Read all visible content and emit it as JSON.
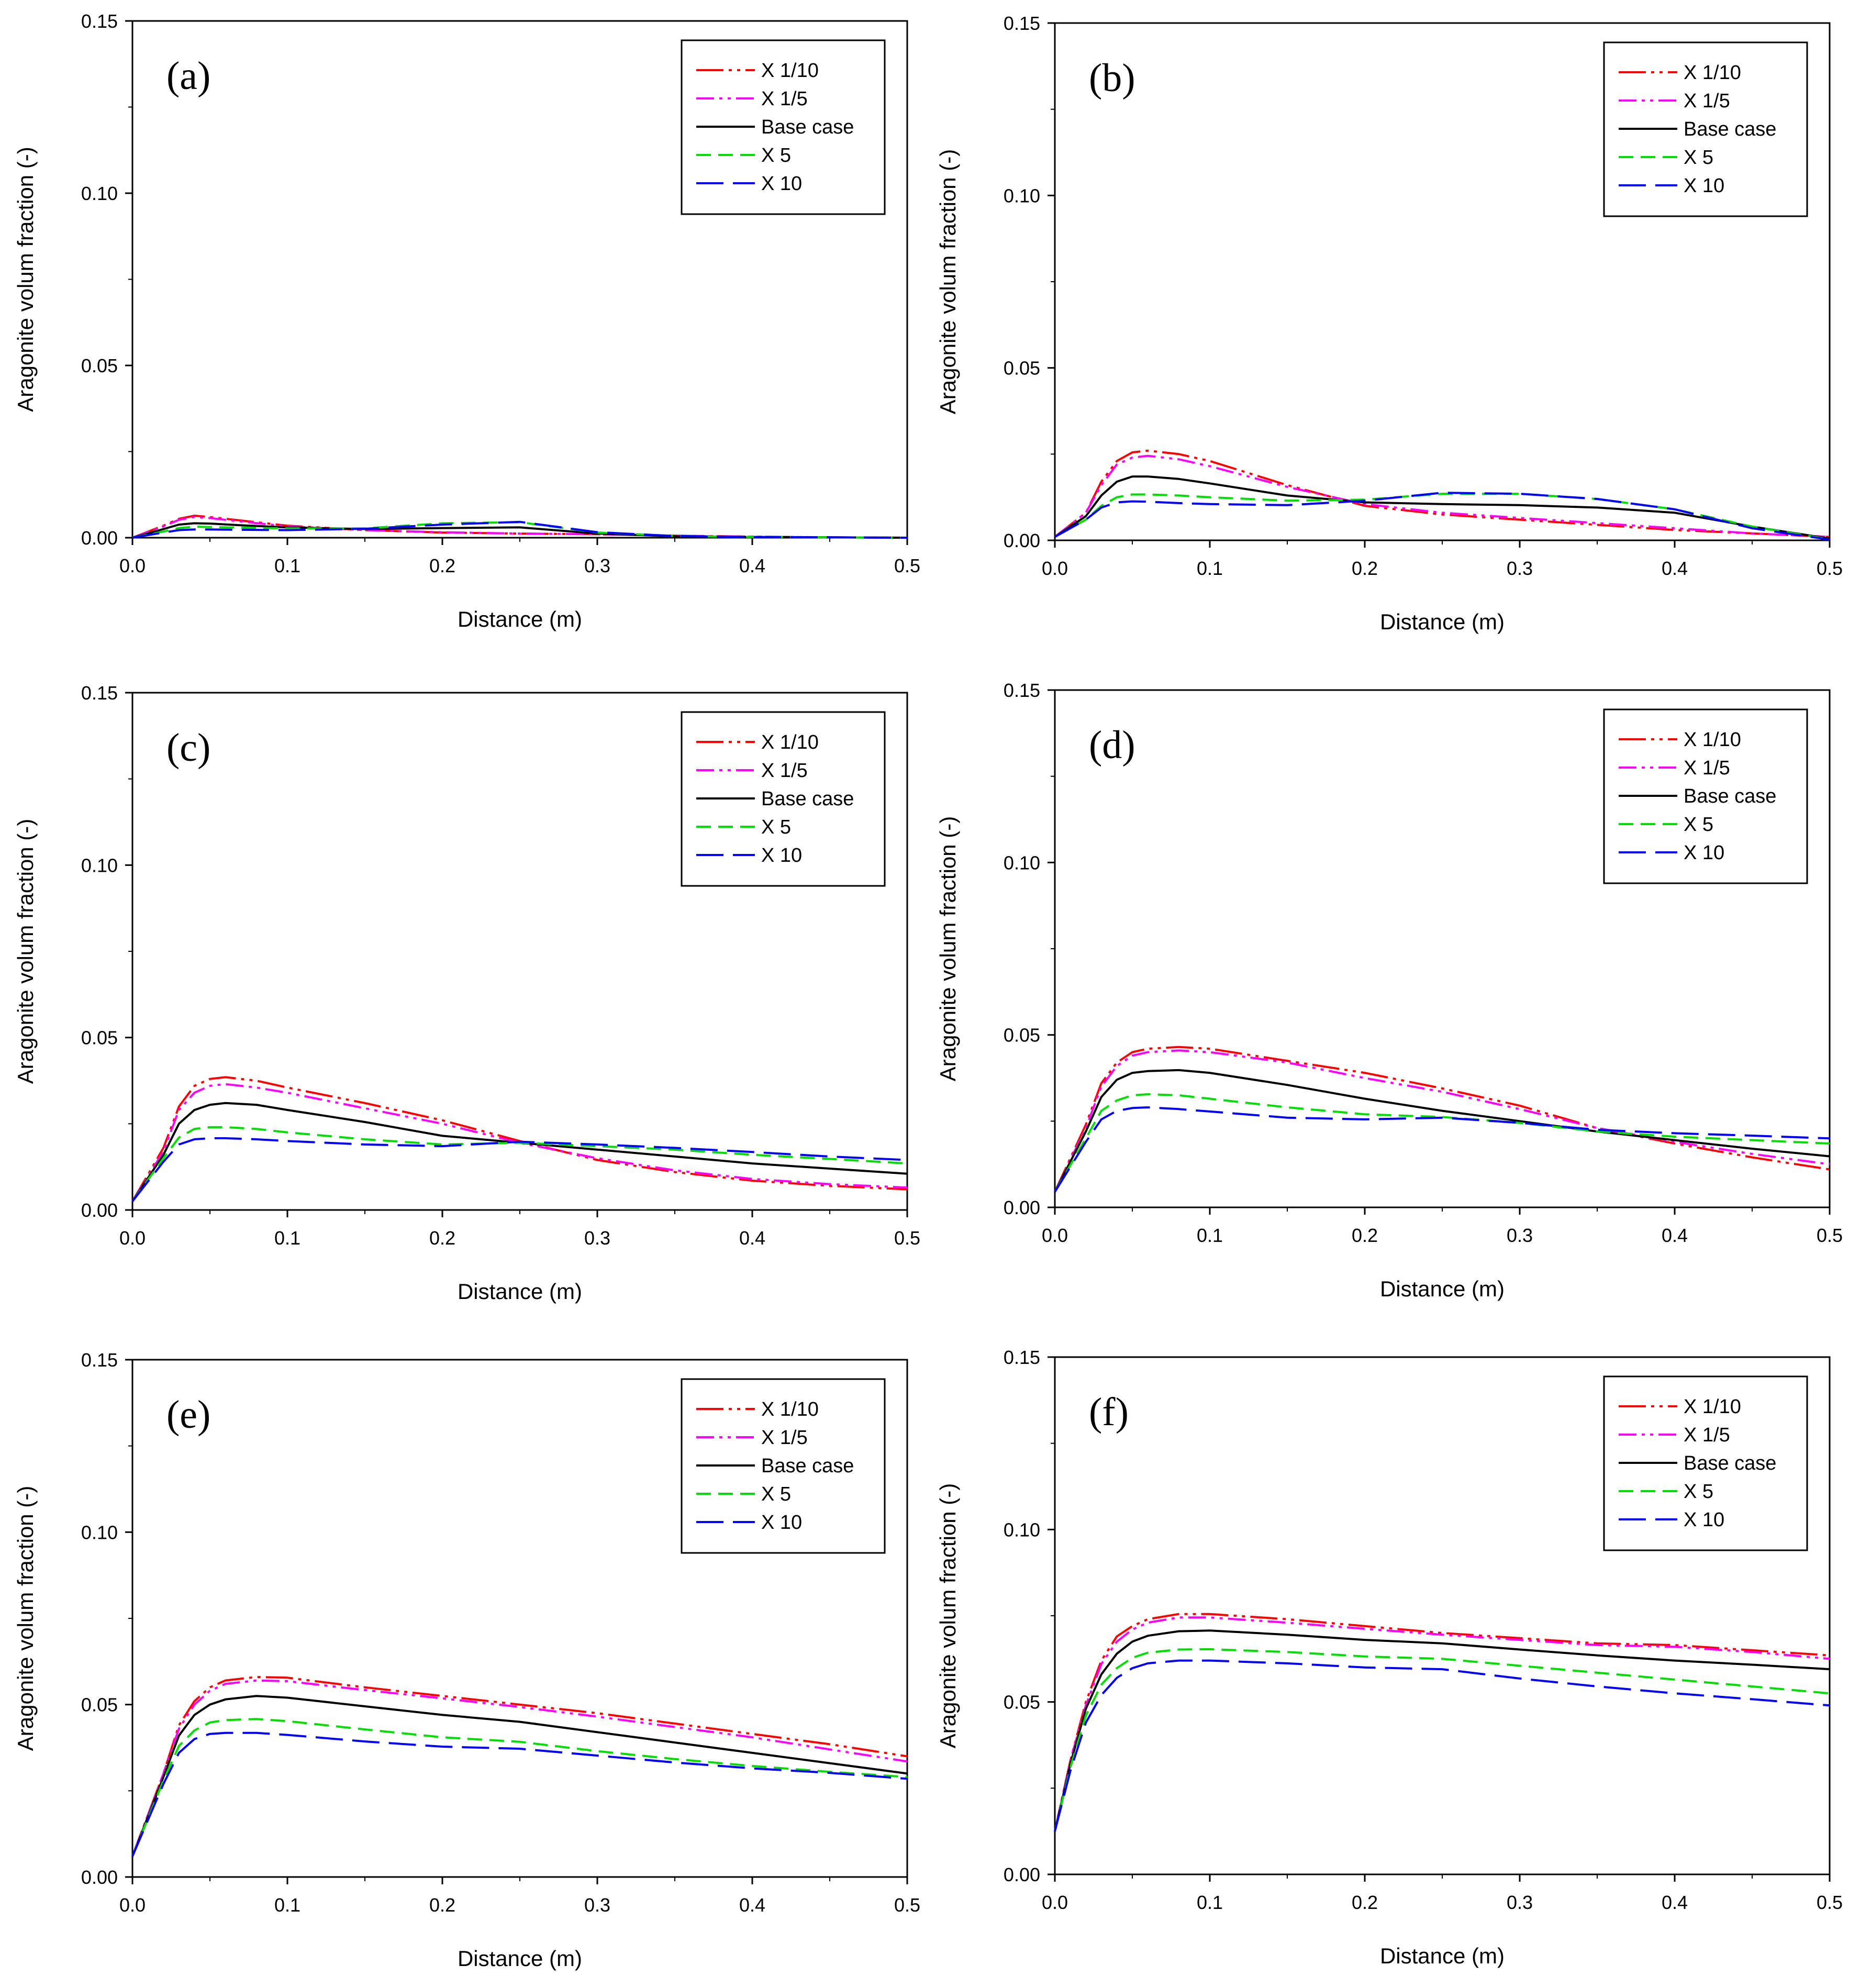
{
  "figure": {
    "xlabel": "Distance (m)",
    "ylabel": "Aragonite volum fraction (-)",
    "xticks": [
      "0.0",
      "0.1",
      "0.2",
      "0.3",
      "0.4",
      "0.5"
    ],
    "yticks": [
      "0.00",
      "0.05",
      "0.10",
      "0.15"
    ]
  },
  "series_style": [
    {
      "name": "X 1/10",
      "color": "#ff0000",
      "dash": "long-dash-dot-dot"
    },
    {
      "name": "X 1/5",
      "color": "#ff00ff",
      "dash": "dash-dot-dot"
    },
    {
      "name": "Base case",
      "color": "#000000",
      "dash": "solid"
    },
    {
      "name": "X 5",
      "color": "#00dd00",
      "dash": "dash"
    },
    {
      "name": "X 10",
      "color": "#0000ff",
      "dash": "long-dash"
    }
  ],
  "chart_data": [
    {
      "type": "line",
      "panel_label": "(a)",
      "xlabel": "Distance (m)",
      "ylabel": "Aragonite volum fraction (-)",
      "xlim": [
        0,
        0.5
      ],
      "ylim": [
        0,
        0.15
      ],
      "legend": "top-right",
      "x": [
        0,
        0.02,
        0.03,
        0.04,
        0.05,
        0.07,
        0.1,
        0.15,
        0.2,
        0.25,
        0.3,
        0.35,
        0.4,
        0.45,
        0.5
      ],
      "series": [
        {
          "name": "X 1/10",
          "values": [
            0,
            0.0035,
            0.0055,
            0.0064,
            0.006,
            0.005,
            0.0035,
            0.0022,
            0.0015,
            0.0012,
            0.001,
            0.0006,
            0.0003,
            0.0001,
            0
          ]
        },
        {
          "name": "X 1/5",
          "values": [
            0,
            0.0033,
            0.0052,
            0.006,
            0.0057,
            0.0047,
            0.0033,
            0.0022,
            0.0016,
            0.0012,
            0.001,
            0.0006,
            0.0003,
            0.0001,
            0
          ]
        },
        {
          "name": "Base case",
          "values": [
            0,
            0.0025,
            0.0038,
            0.0042,
            0.0041,
            0.0036,
            0.003,
            0.0025,
            0.0028,
            0.003,
            0.0012,
            0.0004,
            0.0002,
            0.0001,
            0
          ]
        },
        {
          "name": "X 5",
          "values": [
            0,
            0.0018,
            0.0028,
            0.0032,
            0.0031,
            0.0029,
            0.0027,
            0.0027,
            0.0042,
            0.0045,
            0.0015,
            0.0005,
            0.0002,
            0.0001,
            0
          ]
        },
        {
          "name": "X 10",
          "values": [
            0,
            0.0015,
            0.0022,
            0.0024,
            0.0024,
            0.0023,
            0.0022,
            0.0026,
            0.0038,
            0.0046,
            0.0016,
            0.0005,
            0.0002,
            0.0001,
            0
          ]
        }
      ]
    },
    {
      "type": "line",
      "panel_label": "(b)",
      "xlabel": "Distance (m)",
      "ylabel": "Aragonite volum fraction (-)",
      "xlim": [
        0,
        0.5
      ],
      "ylim": [
        0,
        0.15
      ],
      "legend": "top-right",
      "x": [
        0,
        0.02,
        0.03,
        0.04,
        0.05,
        0.06,
        0.08,
        0.1,
        0.15,
        0.2,
        0.25,
        0.3,
        0.35,
        0.4,
        0.45,
        0.5
      ],
      "series": [
        {
          "name": "X 1/10",
          "values": [
            0.001,
            0.008,
            0.017,
            0.023,
            0.0255,
            0.026,
            0.025,
            0.023,
            0.016,
            0.01,
            0.0075,
            0.006,
            0.0045,
            0.003,
            0.002,
            0.001
          ]
        },
        {
          "name": "X 1/5",
          "values": [
            0.001,
            0.008,
            0.016,
            0.022,
            0.024,
            0.0245,
            0.0235,
            0.0215,
            0.0155,
            0.0105,
            0.008,
            0.0065,
            0.005,
            0.0035,
            0.002,
            0.001
          ]
        },
        {
          "name": "Base case",
          "values": [
            0.001,
            0.007,
            0.013,
            0.017,
            0.0185,
            0.0185,
            0.0178,
            0.0165,
            0.013,
            0.011,
            0.0105,
            0.0102,
            0.0095,
            0.008,
            0.004,
            0.0005
          ]
        },
        {
          "name": "X 5",
          "values": [
            0.001,
            0.006,
            0.01,
            0.0125,
            0.0133,
            0.0133,
            0.013,
            0.0125,
            0.0115,
            0.0118,
            0.0135,
            0.0135,
            0.012,
            0.009,
            0.004,
            0.0003
          ]
        },
        {
          "name": "X 10",
          "values": [
            0.001,
            0.006,
            0.0095,
            0.011,
            0.0113,
            0.0112,
            0.0108,
            0.0105,
            0.0102,
            0.0115,
            0.0138,
            0.0135,
            0.012,
            0.009,
            0.0035,
            0.0002
          ]
        }
      ]
    },
    {
      "type": "line",
      "panel_label": "(c)",
      "xlabel": "Distance (m)",
      "ylabel": "Aragonite volum fraction (-)",
      "xlim": [
        0,
        0.5
      ],
      "ylim": [
        0,
        0.15
      ],
      "legend": "top-right",
      "x": [
        0,
        0.02,
        0.03,
        0.04,
        0.05,
        0.06,
        0.08,
        0.1,
        0.15,
        0.2,
        0.25,
        0.3,
        0.35,
        0.4,
        0.45,
        0.5
      ],
      "series": [
        {
          "name": "X 1/10",
          "values": [
            0.0025,
            0.018,
            0.03,
            0.036,
            0.038,
            0.0385,
            0.0375,
            0.0355,
            0.031,
            0.026,
            0.02,
            0.0145,
            0.011,
            0.0085,
            0.007,
            0.006
          ]
        },
        {
          "name": "X 1/5",
          "values": [
            0.0025,
            0.017,
            0.029,
            0.034,
            0.036,
            0.0365,
            0.0355,
            0.034,
            0.0295,
            0.025,
            0.0195,
            0.015,
            0.0115,
            0.009,
            0.0075,
            0.0065
          ]
        },
        {
          "name": "Base case",
          "values": [
            0.0025,
            0.016,
            0.025,
            0.029,
            0.0305,
            0.031,
            0.0305,
            0.029,
            0.0255,
            0.0215,
            0.0195,
            0.0175,
            0.0155,
            0.0135,
            0.012,
            0.0105
          ]
        },
        {
          "name": "X 5",
          "values": [
            0.0025,
            0.015,
            0.021,
            0.0235,
            0.024,
            0.024,
            0.0235,
            0.0225,
            0.0205,
            0.019,
            0.0195,
            0.0185,
            0.0175,
            0.016,
            0.0148,
            0.0135
          ]
        },
        {
          "name": "X 10",
          "values": [
            0.0025,
            0.014,
            0.019,
            0.0205,
            0.0208,
            0.0208,
            0.0205,
            0.02,
            0.019,
            0.0185,
            0.0198,
            0.019,
            0.018,
            0.0168,
            0.0155,
            0.0145
          ]
        }
      ]
    },
    {
      "type": "line",
      "panel_label": "(d)",
      "xlabel": "Distance (m)",
      "ylabel": "Aragonite volum fraction (-)",
      "xlim": [
        0,
        0.5
      ],
      "ylim": [
        0,
        0.15
      ],
      "legend": "top-right",
      "x": [
        0,
        0.02,
        0.03,
        0.04,
        0.05,
        0.06,
        0.08,
        0.1,
        0.15,
        0.2,
        0.25,
        0.3,
        0.35,
        0.4,
        0.45,
        0.5
      ],
      "series": [
        {
          "name": "X 1/10",
          "values": [
            0.0045,
            0.024,
            0.036,
            0.042,
            0.045,
            0.046,
            0.0465,
            0.046,
            0.0425,
            0.039,
            0.0345,
            0.0295,
            0.023,
            0.0185,
            0.0145,
            0.011
          ]
        },
        {
          "name": "X 1/5",
          "values": [
            0.0045,
            0.023,
            0.035,
            0.041,
            0.044,
            0.045,
            0.0455,
            0.045,
            0.042,
            0.0375,
            0.0335,
            0.0285,
            0.023,
            0.019,
            0.0155,
            0.0125
          ]
        },
        {
          "name": "Base case",
          "values": [
            0.0045,
            0.022,
            0.032,
            0.037,
            0.039,
            0.0395,
            0.0398,
            0.039,
            0.0355,
            0.0315,
            0.028,
            0.025,
            0.022,
            0.0195,
            0.017,
            0.0148
          ]
        },
        {
          "name": "X 5",
          "values": [
            0.0045,
            0.02,
            0.028,
            0.031,
            0.0325,
            0.0328,
            0.0325,
            0.0315,
            0.029,
            0.027,
            0.0262,
            0.0245,
            0.022,
            0.0205,
            0.0195,
            0.0185
          ]
        },
        {
          "name": "X 10",
          "values": [
            0.0045,
            0.019,
            0.0255,
            0.028,
            0.0288,
            0.029,
            0.0285,
            0.0278,
            0.026,
            0.0255,
            0.026,
            0.0245,
            0.0225,
            0.0215,
            0.0208,
            0.02
          ]
        }
      ]
    },
    {
      "type": "line",
      "panel_label": "(e)",
      "xlabel": "Distance (m)",
      "ylabel": "Aragonite volum fraction (-)",
      "xlim": [
        0,
        0.5
      ],
      "ylim": [
        0,
        0.15
      ],
      "legend": "top-right",
      "x": [
        0,
        0.02,
        0.03,
        0.04,
        0.05,
        0.06,
        0.08,
        0.1,
        0.15,
        0.2,
        0.25,
        0.3,
        0.35,
        0.4,
        0.45,
        0.5
      ],
      "series": [
        {
          "name": "X 1/10",
          "values": [
            0.006,
            0.03,
            0.044,
            0.051,
            0.055,
            0.057,
            0.058,
            0.0578,
            0.055,
            0.0525,
            0.05,
            0.0475,
            0.0445,
            0.0415,
            0.0385,
            0.035
          ]
        },
        {
          "name": "X 1/5",
          "values": [
            0.006,
            0.03,
            0.043,
            0.05,
            0.054,
            0.056,
            0.057,
            0.0568,
            0.0542,
            0.0518,
            0.0493,
            0.0465,
            0.0435,
            0.0405,
            0.037,
            0.0335
          ]
        },
        {
          "name": "Base case",
          "values": [
            0.006,
            0.029,
            0.041,
            0.047,
            0.05,
            0.0515,
            0.0525,
            0.052,
            0.0495,
            0.047,
            0.045,
            0.042,
            0.039,
            0.036,
            0.033,
            0.03
          ]
        },
        {
          "name": "X 5",
          "values": [
            0.006,
            0.028,
            0.038,
            0.0425,
            0.0448,
            0.0455,
            0.0458,
            0.0452,
            0.0428,
            0.0405,
            0.0392,
            0.0365,
            0.0342,
            0.0322,
            0.0305,
            0.029
          ]
        },
        {
          "name": "X 10",
          "values": [
            0.006,
            0.027,
            0.036,
            0.04,
            0.0415,
            0.0418,
            0.0418,
            0.0412,
            0.0393,
            0.0378,
            0.0372,
            0.0352,
            0.0332,
            0.0315,
            0.0302,
            0.0285
          ]
        }
      ]
    },
    {
      "type": "line",
      "panel_label": "(f)",
      "xlabel": "Distance (m)",
      "ylabel": "Aragonite volum fraction (-)",
      "xlim": [
        0,
        0.5
      ],
      "ylim": [
        0,
        0.15
      ],
      "legend": "top-right",
      "x": [
        0,
        0.01,
        0.02,
        0.03,
        0.04,
        0.05,
        0.06,
        0.08,
        0.1,
        0.15,
        0.2,
        0.25,
        0.3,
        0.35,
        0.4,
        0.45,
        0.5
      ],
      "series": [
        {
          "name": "X 1/10",
          "values": [
            0.0125,
            0.033,
            0.05,
            0.062,
            0.069,
            0.072,
            0.074,
            0.0755,
            0.0755,
            0.074,
            0.072,
            0.07,
            0.0685,
            0.067,
            0.0665,
            0.065,
            0.0635
          ]
        },
        {
          "name": "X 1/5",
          "values": [
            0.0125,
            0.033,
            0.049,
            0.061,
            0.0675,
            0.071,
            0.073,
            0.0745,
            0.0745,
            0.073,
            0.0712,
            0.0695,
            0.068,
            0.0665,
            0.066,
            0.0645,
            0.0625
          ]
        },
        {
          "name": "Base case",
          "values": [
            0.0125,
            0.032,
            0.048,
            0.058,
            0.064,
            0.0675,
            0.0692,
            0.0705,
            0.0707,
            0.0695,
            0.068,
            0.067,
            0.0652,
            0.0635,
            0.062,
            0.0608,
            0.0595
          ]
        },
        {
          "name": "X 5",
          "values": [
            0.0125,
            0.031,
            0.046,
            0.055,
            0.0598,
            0.0628,
            0.0643,
            0.0652,
            0.0653,
            0.0645,
            0.0632,
            0.0625,
            0.0605,
            0.0585,
            0.0565,
            0.0545,
            0.0525
          ]
        },
        {
          "name": "X 10",
          "values": [
            0.0125,
            0.03,
            0.044,
            0.052,
            0.057,
            0.0598,
            0.0612,
            0.062,
            0.062,
            0.0612,
            0.06,
            0.0595,
            0.0568,
            0.0545,
            0.0525,
            0.0508,
            0.049
          ]
        }
      ]
    }
  ]
}
